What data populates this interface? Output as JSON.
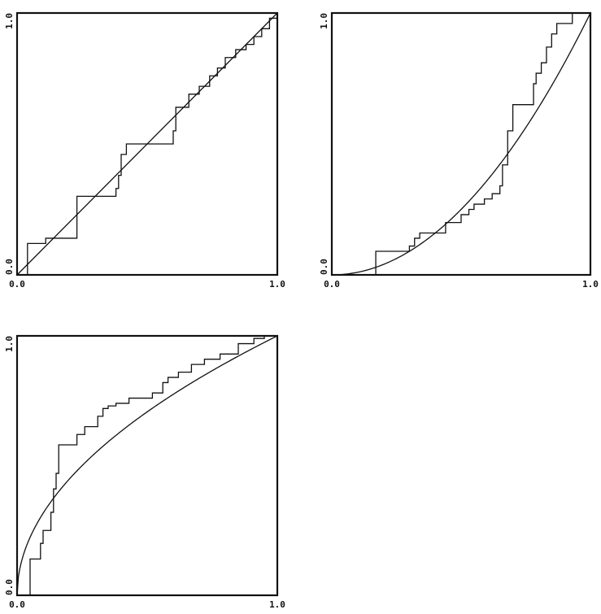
{
  "chart_data": [
    {
      "type": "line",
      "title": "",
      "xlabel": "",
      "ylabel": "",
      "xlim": [
        0,
        1
      ],
      "ylim": [
        0,
        1
      ],
      "x_ticks": [
        "0.0",
        "1.0"
      ],
      "y_ticks": [
        "0.0",
        "1.0"
      ],
      "series": [
        {
          "kind": "curve",
          "x": [
            0,
            1
          ],
          "y": [
            0,
            1
          ]
        },
        {
          "kind": "step",
          "x": [
            0.0,
            0.04,
            0.04,
            0.11,
            0.11,
            0.23,
            0.23,
            0.38,
            0.38,
            0.39,
            0.39,
            0.4,
            0.4,
            0.42,
            0.42,
            0.6,
            0.6,
            0.61,
            0.61,
            0.66,
            0.66,
            0.7,
            0.7,
            0.74,
            0.74,
            0.77,
            0.77,
            0.8,
            0.8,
            0.84,
            0.84,
            0.88,
            0.88,
            0.91,
            0.91,
            0.94,
            0.94,
            0.97,
            0.97,
            1.0
          ],
          "y": [
            0.0,
            0.0,
            0.12,
            0.12,
            0.14,
            0.14,
            0.3,
            0.3,
            0.33,
            0.33,
            0.38,
            0.38,
            0.46,
            0.46,
            0.5,
            0.5,
            0.55,
            0.55,
            0.64,
            0.64,
            0.69,
            0.69,
            0.72,
            0.72,
            0.76,
            0.76,
            0.79,
            0.79,
            0.83,
            0.83,
            0.86,
            0.86,
            0.88,
            0.88,
            0.91,
            0.91,
            0.94,
            0.94,
            0.98,
            0.98
          ]
        }
      ]
    },
    {
      "type": "line",
      "title": "",
      "xlabel": "",
      "ylabel": "",
      "xlim": [
        0,
        1
      ],
      "ylim": [
        0,
        1
      ],
      "x_ticks": [
        "0.0",
        "1.0"
      ],
      "y_ticks": [
        "0.0",
        "1.0"
      ],
      "series": [
        {
          "kind": "curve",
          "curve_power": 2,
          "x": [
            0,
            1
          ],
          "y": [
            0,
            1
          ]
        },
        {
          "kind": "step",
          "x": [
            0.0,
            0.17,
            0.17,
            0.3,
            0.3,
            0.32,
            0.32,
            0.34,
            0.34,
            0.44,
            0.44,
            0.5,
            0.5,
            0.53,
            0.53,
            0.55,
            0.55,
            0.59,
            0.59,
            0.62,
            0.62,
            0.65,
            0.65,
            0.66,
            0.66,
            0.68,
            0.68,
            0.7,
            0.7,
            0.78,
            0.78,
            0.79,
            0.79,
            0.81,
            0.81,
            0.83,
            0.83,
            0.85,
            0.85,
            0.87,
            0.87,
            0.93,
            0.93,
            1.0
          ],
          "y": [
            0.0,
            0.0,
            0.09,
            0.09,
            0.11,
            0.11,
            0.14,
            0.14,
            0.16,
            0.16,
            0.2,
            0.2,
            0.23,
            0.23,
            0.25,
            0.25,
            0.27,
            0.27,
            0.29,
            0.29,
            0.31,
            0.31,
            0.34,
            0.34,
            0.42,
            0.42,
            0.55,
            0.55,
            0.65,
            0.65,
            0.73,
            0.73,
            0.77,
            0.77,
            0.81,
            0.81,
            0.87,
            0.87,
            0.92,
            0.92,
            0.96,
            0.96,
            1.0,
            1.0
          ]
        }
      ]
    },
    {
      "type": "line",
      "title": "",
      "xlabel": "",
      "ylabel": "",
      "xlim": [
        0,
        1
      ],
      "ylim": [
        0,
        1
      ],
      "x_ticks": [
        "0.0",
        "1.0"
      ],
      "y_ticks": [
        "0.0",
        "1.0"
      ],
      "series": [
        {
          "kind": "curve",
          "curve_power": 0.5,
          "x": [
            0,
            1
          ],
          "y": [
            0,
            1
          ]
        },
        {
          "kind": "step",
          "x": [
            0.0,
            0.05,
            0.05,
            0.09,
            0.09,
            0.1,
            0.1,
            0.13,
            0.13,
            0.14,
            0.14,
            0.15,
            0.15,
            0.16,
            0.16,
            0.23,
            0.23,
            0.26,
            0.26,
            0.31,
            0.31,
            0.33,
            0.33,
            0.35,
            0.35,
            0.38,
            0.38,
            0.43,
            0.43,
            0.52,
            0.52,
            0.56,
            0.56,
            0.58,
            0.58,
            0.62,
            0.62,
            0.67,
            0.67,
            0.72,
            0.72,
            0.78,
            0.78,
            0.85,
            0.85,
            0.91,
            0.91,
            0.95,
            0.95,
            1.0
          ],
          "y": [
            0.0,
            0.0,
            0.14,
            0.14,
            0.2,
            0.2,
            0.25,
            0.25,
            0.32,
            0.32,
            0.41,
            0.41,
            0.47,
            0.47,
            0.58,
            0.58,
            0.62,
            0.62,
            0.65,
            0.65,
            0.69,
            0.69,
            0.72,
            0.72,
            0.73,
            0.73,
            0.74,
            0.74,
            0.76,
            0.76,
            0.78,
            0.78,
            0.82,
            0.82,
            0.84,
            0.84,
            0.86,
            0.86,
            0.89,
            0.89,
            0.91,
            0.91,
            0.93,
            0.93,
            0.97,
            0.97,
            0.99,
            0.99,
            1.0,
            1.0
          ]
        }
      ]
    }
  ]
}
